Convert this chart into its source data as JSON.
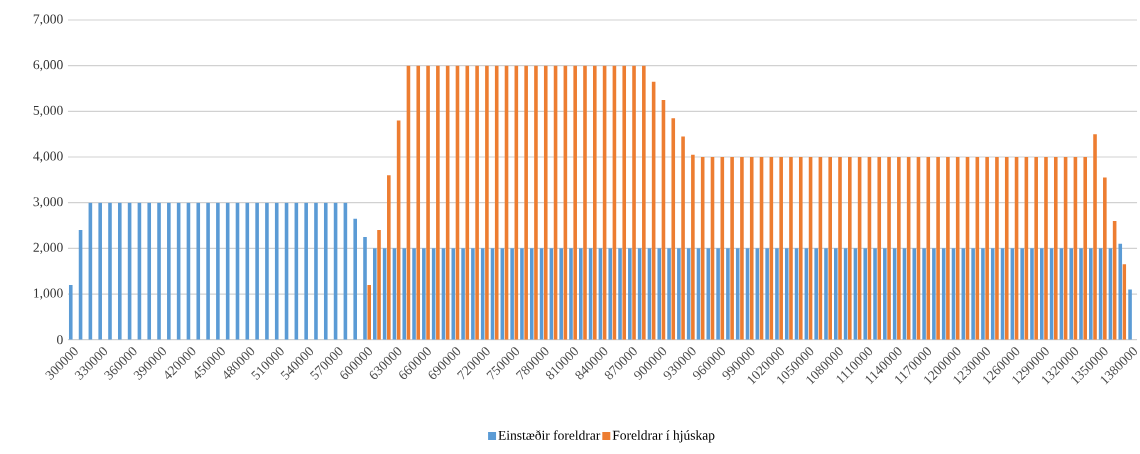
{
  "chart_data": {
    "type": "bar",
    "categories": [
      "300000",
      null,
      null,
      "330000",
      null,
      null,
      "360000",
      null,
      null,
      "390000",
      null,
      null,
      "420000",
      null,
      null,
      "450000",
      null,
      null,
      "480000",
      null,
      null,
      "510000",
      null,
      null,
      "540000",
      null,
      null,
      "570000",
      null,
      null,
      "600000",
      null,
      null,
      "630000",
      null,
      null,
      "660000",
      null,
      null,
      "690000",
      null,
      null,
      "720000",
      null,
      null,
      "750000",
      null,
      null,
      "780000",
      null,
      null,
      "810000",
      null,
      null,
      "840000",
      null,
      null,
      "870000",
      null,
      null,
      "900000",
      null,
      null,
      "930000",
      null,
      null,
      "960000",
      null,
      null,
      "990000",
      null,
      null,
      "1020000",
      null,
      null,
      "1050000",
      null,
      null,
      "1080000",
      null,
      null,
      "1110000",
      null,
      null,
      "1140000",
      null,
      null,
      "1170000",
      null,
      null,
      "1200000",
      null,
      null,
      "1230000",
      null,
      null,
      "1260000",
      null,
      null,
      "1290000",
      null,
      null,
      "1320000",
      null,
      null,
      "1350000",
      null,
      null,
      "1380000"
    ],
    "series": [
      {
        "name": "Einstæðir foreldrar",
        "color": "#5b9bd5",
        "values": [
          1200,
          2400,
          3000,
          3000,
          3000,
          3000,
          3000,
          3000,
          3000,
          3000,
          3000,
          3000,
          3000,
          3000,
          3000,
          3000,
          3000,
          3000,
          3000,
          3000,
          3000,
          3000,
          3000,
          3000,
          3000,
          3000,
          3000,
          3000,
          3000,
          2650,
          2250,
          2000,
          2000,
          2000,
          2000,
          2000,
          2000,
          2000,
          2000,
          2000,
          2000,
          2000,
          2000,
          2000,
          2000,
          2000,
          2000,
          2000,
          2000,
          2000,
          2000,
          2000,
          2000,
          2000,
          2000,
          2000,
          2000,
          2000,
          2000,
          2000,
          2000,
          2000,
          2000,
          2000,
          2000,
          2000,
          2000,
          2000,
          2000,
          2000,
          2000,
          2000,
          2000,
          2000,
          2000,
          2000,
          2000,
          2000,
          2000,
          2000,
          2000,
          2000,
          2000,
          2000,
          2000,
          2000,
          2000,
          2000,
          2000,
          2000,
          2000,
          2000,
          2000,
          2000,
          2000,
          2000,
          2000,
          2000,
          2000,
          2000,
          2000,
          2000,
          2000,
          2000,
          2000,
          2000,
          2000,
          2100,
          1100
        ]
      },
      {
        "name": "Foreldrar í hjúskap",
        "color": "#ed7d31",
        "values": [
          null,
          null,
          null,
          null,
          null,
          null,
          null,
          null,
          null,
          null,
          null,
          null,
          null,
          null,
          null,
          null,
          null,
          null,
          null,
          null,
          null,
          null,
          null,
          null,
          null,
          null,
          null,
          null,
          null,
          null,
          1200,
          2400,
          3600,
          4800,
          6000,
          6000,
          6000,
          6000,
          6000,
          6000,
          6000,
          6000,
          6000,
          6000,
          6000,
          6000,
          6000,
          6000,
          6000,
          6000,
          6000,
          6000,
          6000,
          6000,
          6000,
          6000,
          6000,
          6000,
          6000,
          5650,
          5250,
          4850,
          4450,
          4050,
          4000,
          4000,
          4000,
          4000,
          4000,
          4000,
          4000,
          4000,
          4000,
          4000,
          4000,
          4000,
          4000,
          4000,
          4000,
          4000,
          4000,
          4000,
          4000,
          4000,
          4000,
          4000,
          4000,
          4000,
          4000,
          4000,
          4000,
          4000,
          4000,
          4000,
          4000,
          4000,
          4000,
          4000,
          4000,
          4000,
          4000,
          4000,
          4000,
          4000,
          4500,
          3550,
          2600,
          1650,
          null
        ]
      }
    ],
    "ylim": [
      0,
      7000
    ],
    "yticks": [
      0,
      {
        "value": 1000,
        "label": "1,000"
      },
      {
        "value": 2000,
        "label": "2,000"
      },
      {
        "value": 3000,
        "label": "3,000"
      },
      {
        "value": 4000,
        "label": "4,000"
      },
      {
        "value": 5000,
        "label": "5,000"
      },
      {
        "value": 6000,
        "label": "6,000"
      },
      {
        "value": 7000,
        "label": "7,000"
      }
    ],
    "grid": "y",
    "legend": "bottom"
  }
}
